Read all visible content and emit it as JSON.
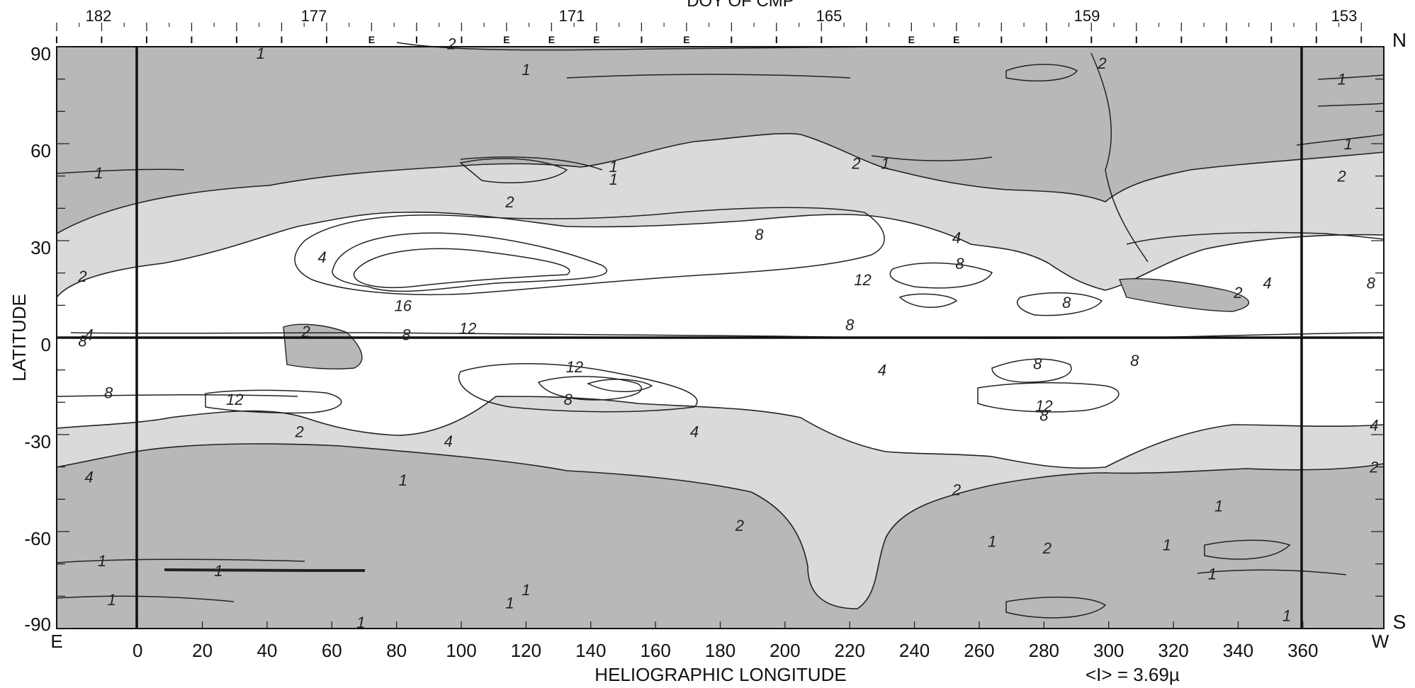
{
  "chart_data": {
    "type": "heatmap",
    "title": "",
    "top_axis_label": "DOY OF CMP",
    "top_axis_ticks": [
      "182",
      "177",
      "171",
      "165",
      "159",
      "153"
    ],
    "top_axis_markers": [
      "I",
      "I",
      "I",
      "I",
      "I",
      "I",
      "I",
      "E",
      "I",
      "I",
      "E",
      "E",
      "E",
      "I",
      "E",
      "I",
      "I",
      "I",
      "I",
      "E",
      "E",
      "I",
      "I",
      "I",
      "I",
      "I",
      "I",
      "I",
      "I",
      "I"
    ],
    "xlabel": "HELIOGRAPHIC LONGITUDE",
    "ylabel": "LATITUDE",
    "xlim": [
      -25,
      385
    ],
    "ylim": [
      -90,
      90
    ],
    "x_ticks": [
      "0",
      "20",
      "40",
      "60",
      "80",
      "100",
      "120",
      "140",
      "160",
      "180",
      "200",
      "220",
      "240",
      "260",
      "280",
      "300",
      "320",
      "340",
      "360"
    ],
    "y_ticks": [
      "90",
      "60",
      "30",
      "0",
      "-30",
      "-60",
      "-90"
    ],
    "left_edge_label": "E",
    "right_edge_label": "W",
    "north_label": "N",
    "south_label": "S",
    "mean_annotation": "<I> = 3.69µ",
    "contour_levels": [
      1,
      2,
      4,
      8,
      12,
      16
    ],
    "band_colors": {
      "below_2": "#b8b8b8",
      "from_2_to_4": "#dadada",
      "above_4": "#ffffff"
    },
    "contour_labels": [
      {
        "text": "1",
        "x": 38,
        "y": 88
      },
      {
        "text": "2",
        "x": 97,
        "y": 91
      },
      {
        "text": "1",
        "x": 120,
        "y": 83
      },
      {
        "text": "1",
        "x": -12,
        "y": 51
      },
      {
        "text": "2",
        "x": 115,
        "y": 42
      },
      {
        "text": "1",
        "x": 147,
        "y": 53
      },
      {
        "text": "1",
        "x": 147,
        "y": 49
      },
      {
        "text": "2",
        "x": 222,
        "y": 54
      },
      {
        "text": "1",
        "x": 231,
        "y": 54
      },
      {
        "text": "2",
        "x": 298,
        "y": 85
      },
      {
        "text": "1",
        "x": 372,
        "y": 80
      },
      {
        "text": "1",
        "x": 374,
        "y": 60
      },
      {
        "text": "2",
        "x": 372,
        "y": 50
      },
      {
        "text": "8",
        "x": 192,
        "y": 32
      },
      {
        "text": "4",
        "x": 253,
        "y": 31
      },
      {
        "text": "8",
        "x": 254,
        "y": 23
      },
      {
        "text": "12",
        "x": 224,
        "y": 18
      },
      {
        "text": "2",
        "x": 340,
        "y": 14
      },
      {
        "text": "4",
        "x": 349,
        "y": 17
      },
      {
        "text": "8",
        "x": 381,
        "y": 17
      },
      {
        "text": "8",
        "x": 287,
        "y": 11
      },
      {
        "text": "16",
        "x": 82,
        "y": 10
      },
      {
        "text": "12",
        "x": 102,
        "y": 3
      },
      {
        "text": "8",
        "x": 220,
        "y": 4
      },
      {
        "text": "8",
        "x": 83,
        "y": 1
      },
      {
        "text": "2",
        "x": 52,
        "y": 2
      },
      {
        "text": "4",
        "x": -15,
        "y": 1
      },
      {
        "text": "8",
        "x": -17,
        "y": -1
      },
      {
        "text": "2",
        "x": -17,
        "y": 19
      },
      {
        "text": "4",
        "x": 57,
        "y": 25
      },
      {
        "text": "12",
        "x": 135,
        "y": -9
      },
      {
        "text": "8",
        "x": 133,
        "y": -19
      },
      {
        "text": "4",
        "x": 230,
        "y": -10
      },
      {
        "text": "8",
        "x": 278,
        "y": -8
      },
      {
        "text": "8",
        "x": 308,
        "y": -7
      },
      {
        "text": "12",
        "x": 280,
        "y": -21
      },
      {
        "text": "8",
        "x": 280,
        "y": -24
      },
      {
        "text": "8",
        "x": -9,
        "y": -17
      },
      {
        "text": "12",
        "x": 30,
        "y": -19
      },
      {
        "text": "2",
        "x": 50,
        "y": -29
      },
      {
        "text": "4",
        "x": 96,
        "y": -32
      },
      {
        "text": "4",
        "x": 172,
        "y": -29
      },
      {
        "text": "4",
        "x": 382,
        "y": -27
      },
      {
        "text": "2",
        "x": 382,
        "y": -40
      },
      {
        "text": "4",
        "x": -15,
        "y": -43
      },
      {
        "text": "1",
        "x": 82,
        "y": -44
      },
      {
        "text": "2",
        "x": 253,
        "y": -47
      },
      {
        "text": "2",
        "x": 186,
        "y": -58
      },
      {
        "text": "1",
        "x": 264,
        "y": -63
      },
      {
        "text": "2",
        "x": 281,
        "y": -65
      },
      {
        "text": "1",
        "x": 318,
        "y": -64
      },
      {
        "text": "1",
        "x": 334,
        "y": -52
      },
      {
        "text": "1",
        "x": 332,
        "y": -73
      },
      {
        "text": "1",
        "x": 120,
        "y": -78
      },
      {
        "text": "1",
        "x": 115,
        "y": -82
      },
      {
        "text": "1",
        "x": -11,
        "y": -69
      },
      {
        "text": "1",
        "x": 25,
        "y": -72
      },
      {
        "text": "1",
        "x": 355,
        "y": -86
      },
      {
        "text": "1",
        "x": 69,
        "y": -88
      },
      {
        "text": "1",
        "x": -8,
        "y": -81
      }
    ]
  }
}
